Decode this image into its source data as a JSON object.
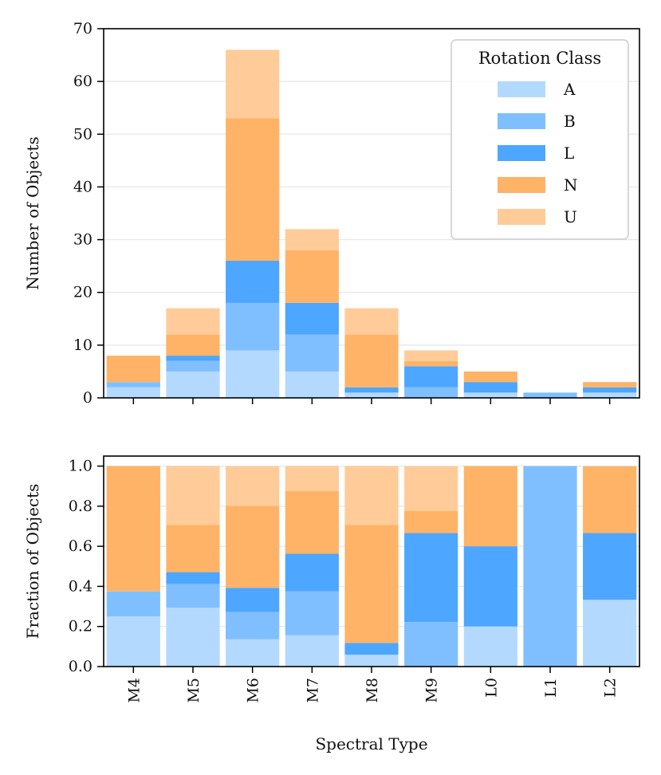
{
  "chart_data": [
    {
      "type": "bar",
      "stacked": true,
      "panel": "top",
      "categories": [
        "M4",
        "M5",
        "M6",
        "M7",
        "M8",
        "M9",
        "L0",
        "L1",
        "L2"
      ],
      "series": [
        {
          "name": "A",
          "values": [
            2,
            5,
            9,
            5,
            1,
            0,
            1,
            0,
            1
          ]
        },
        {
          "name": "B",
          "values": [
            1,
            2,
            9,
            7,
            0,
            2,
            0,
            1,
            0
          ]
        },
        {
          "name": "L",
          "values": [
            0,
            1,
            8,
            6,
            1,
            4,
            2,
            0,
            1
          ]
        },
        {
          "name": "N",
          "values": [
            5,
            4,
            27,
            10,
            10,
            1,
            2,
            0,
            1
          ]
        },
        {
          "name": "U",
          "values": [
            0,
            5,
            13,
            4,
            5,
            2,
            0,
            0,
            0
          ]
        }
      ],
      "title": "",
      "xlabel": "",
      "ylabel": "Number of Objects",
      "ylim": [
        0,
        70
      ],
      "yticks": [
        "0",
        "10",
        "20",
        "30",
        "40",
        "50",
        "60",
        "70"
      ],
      "grid": "y",
      "legend": {
        "title": "Rotation Class",
        "placement": "top-right"
      }
    },
    {
      "type": "bar",
      "stacked": true,
      "panel": "bottom",
      "categories": [
        "M4",
        "M5",
        "M6",
        "M7",
        "M8",
        "M9",
        "L0",
        "L1",
        "L2"
      ],
      "series": [
        {
          "name": "A",
          "values": [
            0.25,
            0.294,
            0.136,
            0.156,
            0.059,
            0.0,
            0.2,
            0.0,
            0.333
          ]
        },
        {
          "name": "B",
          "values": [
            0.125,
            0.118,
            0.136,
            0.219,
            0.0,
            0.222,
            0.0,
            1.0,
            0.0
          ]
        },
        {
          "name": "L",
          "values": [
            0.0,
            0.059,
            0.121,
            0.188,
            0.059,
            0.444,
            0.4,
            0.0,
            0.333
          ]
        },
        {
          "name": "N",
          "values": [
            0.625,
            0.235,
            0.409,
            0.312,
            0.588,
            0.111,
            0.4,
            0.0,
            0.333
          ]
        },
        {
          "name": "U",
          "values": [
            0.0,
            0.294,
            0.197,
            0.125,
            0.294,
            0.222,
            0.0,
            0.0,
            0.0
          ]
        }
      ],
      "title": "",
      "xlabel": "Spectral Type",
      "ylabel": "Fraction of Objects",
      "ylim": [
        0,
        1.05
      ],
      "yticks": [
        "0.0",
        "0.2",
        "0.4",
        "0.6",
        "0.8",
        "1.0"
      ],
      "grid": "y"
    }
  ],
  "colors": {
    "A": "#b3d9ff",
    "B": "#80bfff",
    "L": "#4da6ff",
    "N": "#ffb366",
    "U": "#ffcc99"
  }
}
